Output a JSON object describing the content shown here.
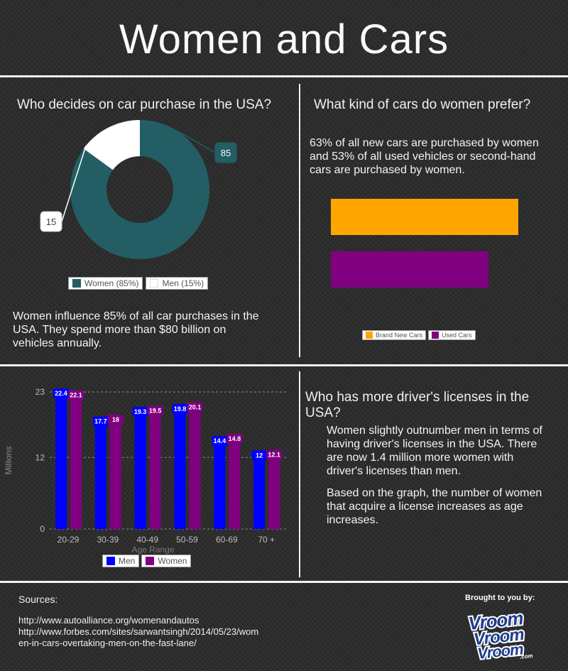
{
  "title": "Women and Cars",
  "colors": {
    "teal": "#225e63",
    "white": "#ffffff",
    "orange": "#ffa500",
    "purple": "#800080",
    "blue": "#0000ff",
    "divider": "#f2f2f2"
  },
  "donut_panel": {
    "heading": "Who decides on car purchase in the USA?",
    "body": "Women influence 85% of all car purchases in the USA. They spend more than $80 billion on vehicles annually."
  },
  "pref_panel": {
    "heading": "What kind of cars do women prefer?",
    "body": "63% of all new cars are purchased by women and 53% of all used vehicles or second-hand cars are purchased by women."
  },
  "license_panel": {
    "heading": "Who has more driver's licenses in the USA?",
    "body1": "Women slightly outnumber men in terms of having driver's licenses in the USA. There are now 1.4 million more women with driver's licenses than men.",
    "body2": "Based on the graph, the number of women that acquire a license increases as age increases."
  },
  "sources": {
    "heading": "Sources:",
    "line1": "http://www.autoalliance.org/womenandautos",
    "line2": "http://www.forbes.com/sites/sarwantsingh/2014/05/23/wom",
    "line3": "en-in-cars-overtaking-men-on-the-fast-lane/"
  },
  "brought": {
    "label": "Brought to you by:",
    "logo_lines": [
      "Vroom",
      "Vroom",
      "Vroom"
    ],
    "logo_suffix": ".com"
  },
  "chart_data": [
    {
      "type": "pie",
      "donut": true,
      "labels": [
        "Women (85%)",
        "Men (15%)"
      ],
      "values": [
        85,
        15
      ],
      "data_labels": [
        "85",
        "15"
      ],
      "colors": [
        "#225e63",
        "#ffffff"
      ],
      "legend": "bottom"
    },
    {
      "type": "bar",
      "orientation": "horizontal",
      "categories": [
        "Brand New Cars",
        "Used Cars"
      ],
      "values": [
        63,
        53
      ],
      "colors": [
        "#ffa500",
        "#800080"
      ],
      "legend": "bottom"
    },
    {
      "type": "bar",
      "categories": [
        "20-29",
        "30-39",
        "40-49",
        "50-59",
        "60-69",
        "70 +"
      ],
      "series": [
        {
          "name": "Men",
          "values": [
            22.4,
            17.7,
            19.3,
            19.8,
            14.4,
            12
          ],
          "color": "#0000ff"
        },
        {
          "name": "Women",
          "values": [
            22.1,
            18,
            19.5,
            20.1,
            14.8,
            12.1
          ],
          "color": "#800080"
        }
      ],
      "data_labels": {
        "Men": [
          "22.4",
          "17.7",
          "19.3",
          "19.8",
          "14.4",
          "12"
        ],
        "Women": [
          "22.1",
          "18",
          "19.5",
          "20.1",
          "14.8",
          "12.1"
        ]
      },
      "yticks": [
        "0",
        "12",
        "23"
      ],
      "ylim": [
        0,
        23
      ],
      "xlabel": "Age Range",
      "ylabel": "Millions",
      "grid": true,
      "legend": "bottom"
    }
  ]
}
